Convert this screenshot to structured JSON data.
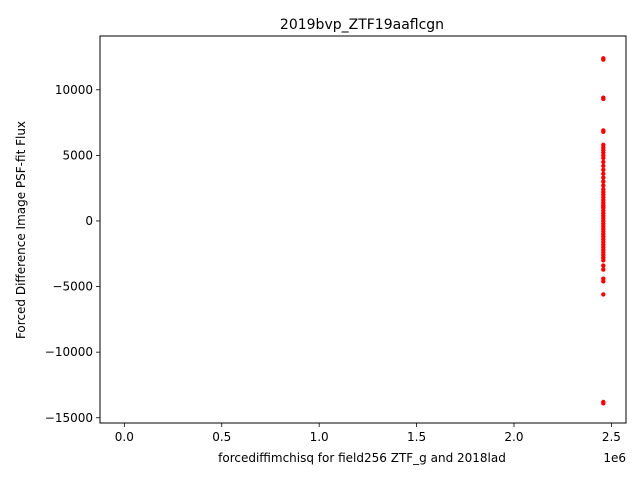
{
  "chart_data": {
    "type": "scatter",
    "title": "2019bvp_ZTF19aaflcgn",
    "xlabel": "forcediffimchisq for field256 ZTF_g and 2018lad",
    "ylabel": "Forced Difference Image PSF-fit Flux",
    "x_offset_label": "1e6",
    "xlim": [
      -125000,
      2575000
    ],
    "ylim": [
      -15400,
      14100
    ],
    "xticks": [
      0,
      500000,
      1000000,
      1500000,
      2000000,
      2500000
    ],
    "xtick_labels": [
      "0.0",
      "0.5",
      "1.0",
      "1.5",
      "2.0",
      "2.5"
    ],
    "yticks": [
      -15000,
      -10000,
      -5000,
      0,
      5000,
      10000
    ],
    "ytick_labels": [
      "−15000",
      "−10000",
      "−5000",
      "0",
      "5000",
      "10000"
    ],
    "grid": false,
    "marker_color": "#ff0000",
    "series": [
      {
        "x": [
          2458560,
          2458560,
          2458560,
          2458560,
          2458560,
          2458560,
          2458560,
          2458560,
          2458560,
          2458560,
          2458560,
          2458560,
          2458560,
          2458560,
          2458560,
          2458560,
          2458560,
          2458560,
          2458560,
          2458560,
          2458560,
          2458560,
          2458560,
          2458560,
          2458560,
          2458560,
          2458560,
          2458560,
          2458560,
          2458560,
          2458560,
          2458560,
          2458560,
          2458560,
          2458560,
          2458560,
          2458560,
          2458560,
          2458560,
          2458560,
          2458560,
          2458560,
          2458560,
          2458560,
          2458560,
          2458560,
          2458560,
          2458560,
          2458560,
          2458560,
          2458560,
          2458560,
          2458560,
          2458560,
          2458560
        ],
        "y": [
          12400,
          12300,
          9400,
          9300,
          6900,
          6800,
          5800,
          5600,
          5400,
          5200,
          5000,
          4800,
          4500,
          4200,
          3900,
          3600,
          3300,
          3000,
          2700,
          2400,
          2200,
          2000,
          1800,
          1600,
          1400,
          1200,
          1000,
          800,
          600,
          400,
          200,
          0,
          -200,
          -400,
          -600,
          -800,
          -1000,
          -1200,
          -1400,
          -1600,
          -1800,
          -2000,
          -2200,
          -2400,
          -2600,
          -2800,
          -3000,
          -3400,
          -3700,
          -4400,
          -4600,
          -5600,
          -13800,
          -13900,
          1100
        ]
      }
    ]
  }
}
